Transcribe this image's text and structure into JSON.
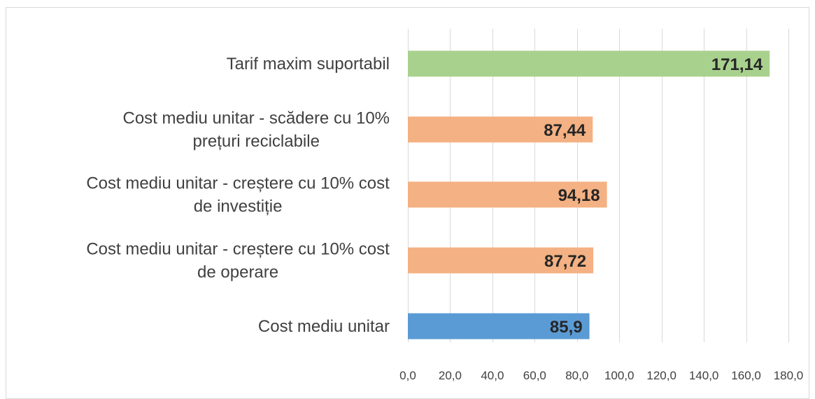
{
  "chart_data": {
    "type": "bar",
    "orientation": "horizontal",
    "categories": [
      "Tarif maxim suportabil",
      "Cost mediu unitar - scădere cu 10% prețuri reciclabile",
      "Cost mediu unitar - creștere cu 10% cost de investiție",
      "Cost mediu unitar - creștere cu 10% cost de operare",
      "Cost mediu unitar"
    ],
    "category_lines": [
      [
        "Tarif maxim suportabil"
      ],
      [
        "Cost mediu unitar - scădere cu 10%",
        "prețuri reciclabile"
      ],
      [
        "Cost mediu unitar - creștere cu 10% cost",
        "de investiție"
      ],
      [
        "Cost mediu unitar - creștere cu 10% cost",
        "de operare"
      ],
      [
        "Cost mediu unitar"
      ]
    ],
    "values": [
      171.14,
      87.44,
      94.18,
      87.72,
      85.9
    ],
    "value_labels": [
      "171,14",
      "87,44",
      "94,18",
      "87,72",
      "85,9"
    ],
    "bar_colors": [
      "#a9d18e",
      "#f4b183",
      "#f4b183",
      "#f4b183",
      "#5b9bd5"
    ],
    "xlim": [
      0,
      180
    ],
    "x_ticks": [
      0,
      20,
      40,
      60,
      80,
      100,
      120,
      140,
      160,
      180
    ],
    "x_tick_labels": [
      "0,0",
      "20,0",
      "40,0",
      "60,0",
      "80,0",
      "100,0",
      "120,0",
      "140,0",
      "160,0",
      "180,0"
    ],
    "grid": true,
    "title": "",
    "xlabel": "",
    "ylabel": "",
    "legend": "none"
  }
}
